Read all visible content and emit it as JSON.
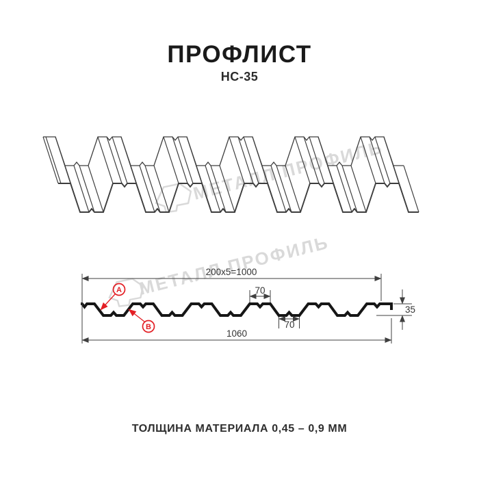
{
  "title": "ПРОФЛИСТ",
  "subtitle": "НС-35",
  "watermark": {
    "text": "МЕТАЛЛ ПРОФИЛЬ"
  },
  "section": {
    "dim_pitch": "200x5=1000",
    "dim_top_flange": "70",
    "dim_bottom_flange": "70",
    "dim_overall": "1060",
    "dim_height": "35",
    "label_a": "A",
    "label_b": "B"
  },
  "colors": {
    "accent_red": "#e31e24",
    "profile_line": "#161616",
    "dimension_line": "#3f3f3f",
    "watermark_gray": "#d9d9d9"
  },
  "footer": {
    "text": "ТОЛЩИНА МАТЕРИАЛА 0,45 – 0,9 ММ"
  }
}
